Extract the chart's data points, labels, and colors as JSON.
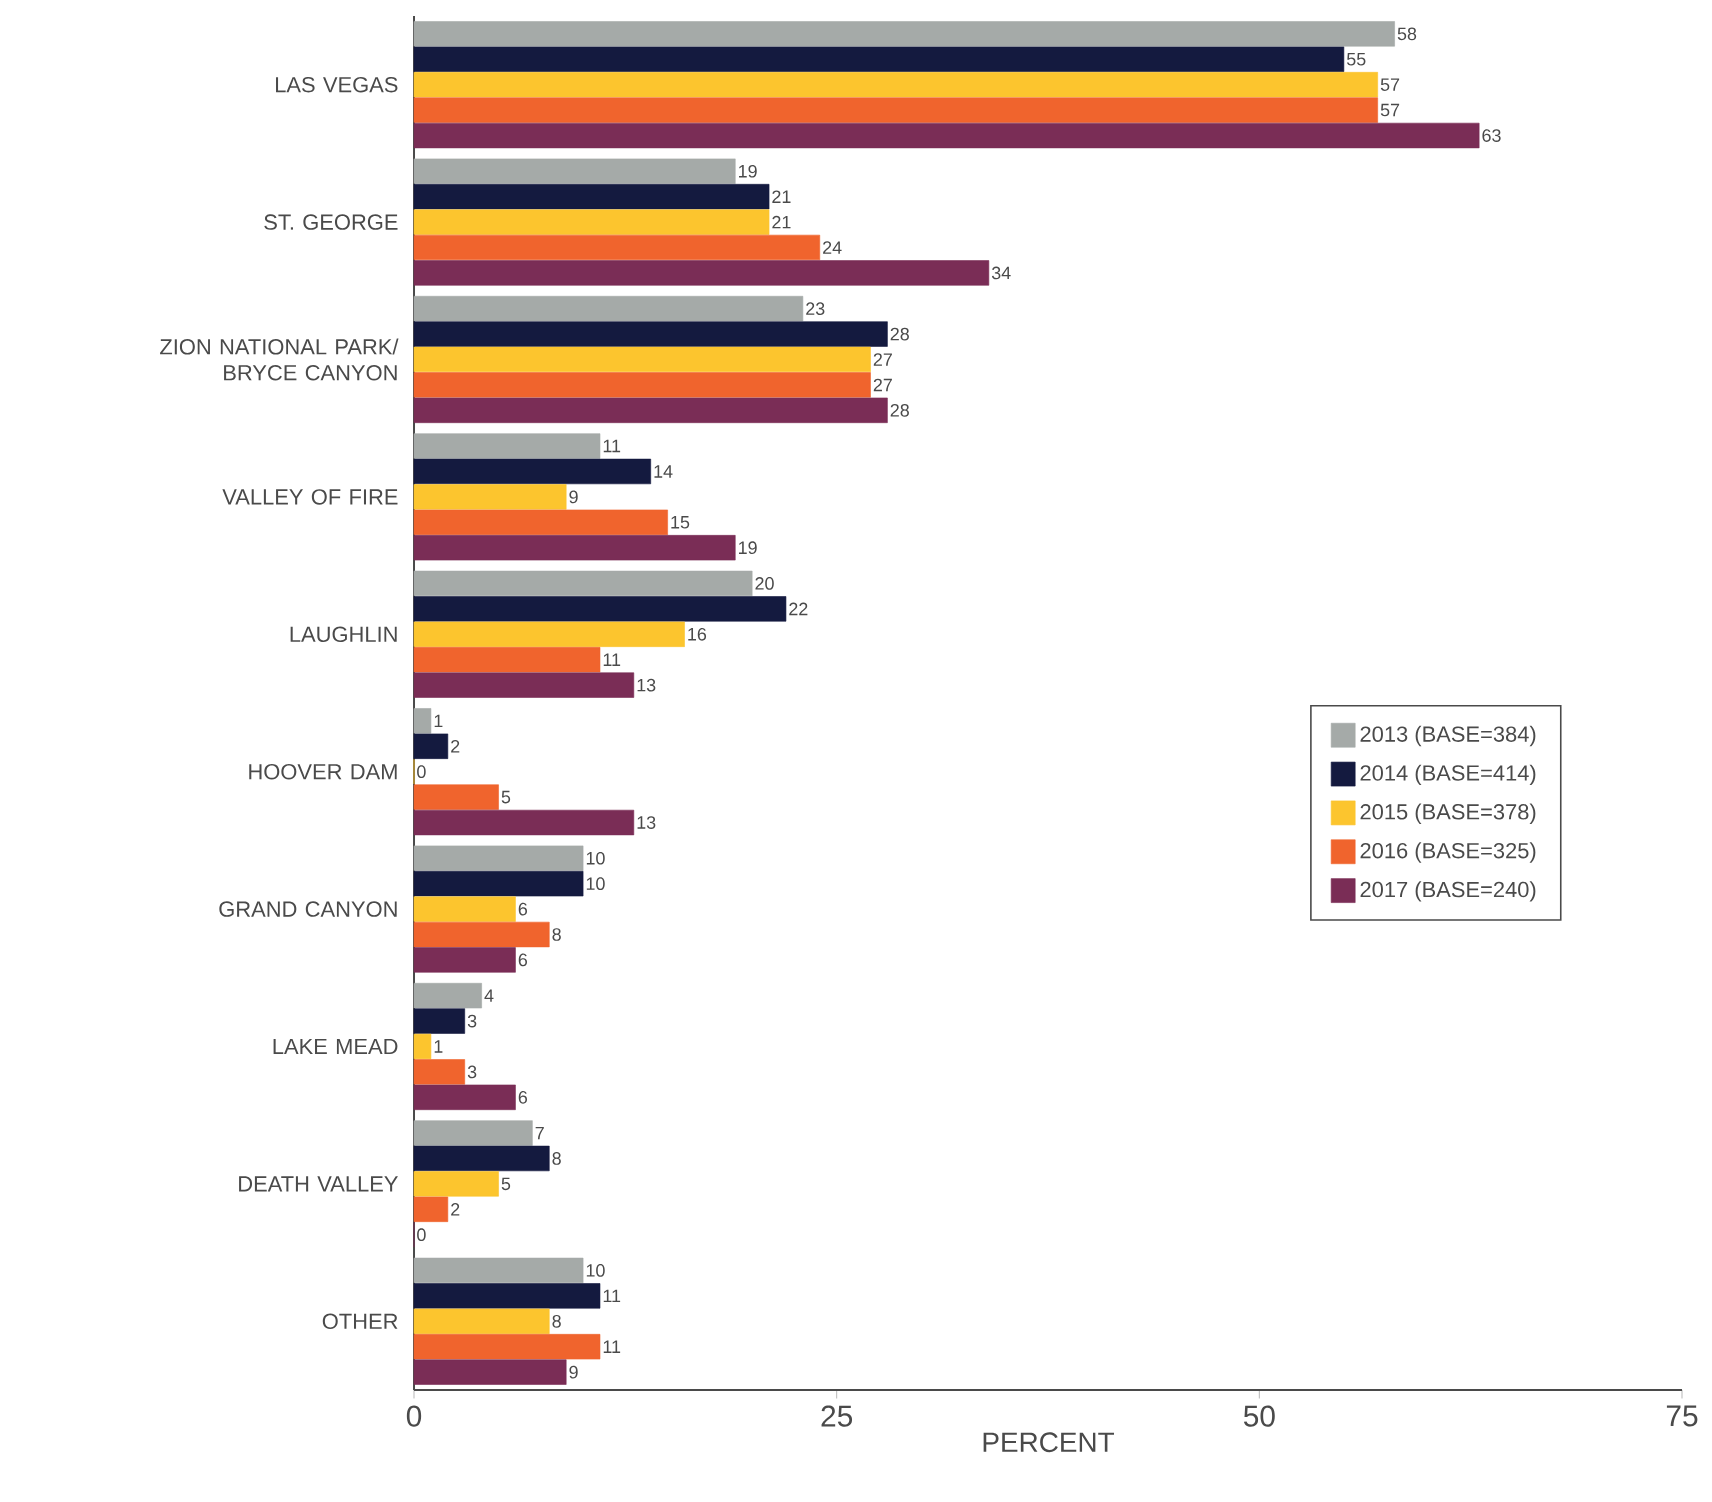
{
  "chart_data": {
    "type": "bar",
    "orientation": "horizontal",
    "xlabel": "PERCENT",
    "categories": [
      "LAS VEGAS",
      "ST. GEORGE",
      "ZION NATIONAL PARK/ BRYCE CANYON",
      "VALLEY OF FIRE",
      "LAUGHLIN",
      "HOOVER DAM",
      "GRAND CANYON",
      "LAKE MEAD",
      "DEATH VALLEY",
      "OTHER"
    ],
    "series": [
      {
        "name": "2013 (BASE=384)",
        "color": "#a5aaa8",
        "values": [
          58,
          19,
          23,
          11,
          20,
          1,
          10,
          4,
          7,
          10
        ]
      },
      {
        "name": "2014 (BASE=414)",
        "color": "#141a3f",
        "values": [
          55,
          21,
          28,
          14,
          22,
          2,
          10,
          3,
          8,
          11
        ]
      },
      {
        "name": "2015 (BASE=378)",
        "color": "#fcc52e",
        "values": [
          57,
          21,
          27,
          9,
          16,
          0,
          6,
          1,
          5,
          8
        ]
      },
      {
        "name": "2016 (BASE=325)",
        "color": "#f0642d",
        "values": [
          57,
          24,
          27,
          15,
          11,
          5,
          8,
          3,
          2,
          11
        ]
      },
      {
        "name": "2017 (BASE=240)",
        "color": "#7a2d56",
        "values": [
          63,
          34,
          28,
          19,
          13,
          13,
          6,
          6,
          0,
          9
        ]
      }
    ],
    "xlim": [
      0,
      75
    ],
    "xticks": [
      0,
      25,
      50,
      75
    ],
    "data_labels": true,
    "legend": "right",
    "grid": false
  }
}
